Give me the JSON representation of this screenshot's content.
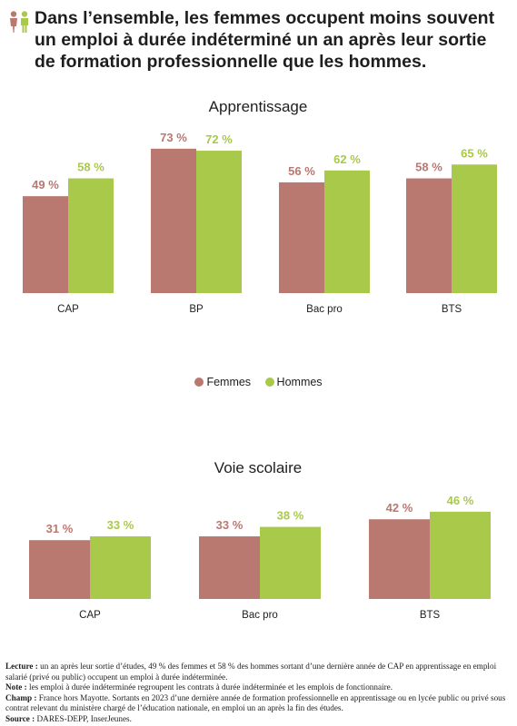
{
  "title": "Dans l’ensemble, les femmes occupent moins souvent un emploi à durée indéterminé un an après leur sortie de formation professionnelle que les hommes.",
  "colors": {
    "femmes": "#b97870",
    "hommes": "#a9c94a",
    "icon": "#b97870",
    "icon2": "#a9c94a"
  },
  "legend": {
    "femmes": "Femmes",
    "hommes": "Hommes"
  },
  "chart_data": [
    {
      "type": "bar",
      "title": "Apprentissage",
      "categories": [
        "CAP",
        "BP",
        "Bac pro",
        "BTS"
      ],
      "series": [
        {
          "name": "Femmes",
          "values": [
            49,
            73,
            56,
            58
          ],
          "labels": [
            "49 %",
            "73 %",
            "56 %",
            "58 %"
          ]
        },
        {
          "name": "Hommes",
          "values": [
            58,
            72,
            62,
            65
          ],
          "labels": [
            "58 %",
            "72 %",
            "62 %",
            "65 %"
          ]
        }
      ],
      "ylim": [
        0,
        100
      ],
      "grid": false,
      "legend_position": "bottom"
    },
    {
      "type": "bar",
      "title": "Voie scolaire",
      "categories": [
        "CAP",
        "Bac pro",
        "BTS"
      ],
      "series": [
        {
          "name": "Femmes",
          "values": [
            31,
            33,
            42
          ],
          "labels": [
            "31 %",
            "33 %",
            "42 %"
          ]
        },
        {
          "name": "Hommes",
          "values": [
            33,
            38,
            46
          ],
          "labels": [
            "33 %",
            "38 %",
            "46 %"
          ]
        }
      ],
      "ylim": [
        0,
        100
      ],
      "grid": false
    }
  ],
  "notes": {
    "lecture_label": "Lecture :",
    "lecture_text": " un an après leur sortie d’études, 49 % des femmes et 58 % des hommes sortant d’une dernière année de CAP en apprentissage en emploi salarié (privé ou public) occupent un emploi à durée indéterminée.",
    "note_label": "Note :",
    "note_text": " les emploi à durée indéterminée regroupent les contrats à durée indéterminée et les emplois de fonctionnaire.",
    "champ_label": "Champ :",
    "champ_text": " France hors Mayotte. Sortants en 2023 d’une dernière année de formation professionnelle en apprentissage ou en lycée public ou privé sous contrat relevant du ministère chargé de l’éducation nationale, en emploi un an après la fin des études.",
    "source_label": "Source :",
    "source_text": " DARES-DEPP, InserJeunes."
  }
}
